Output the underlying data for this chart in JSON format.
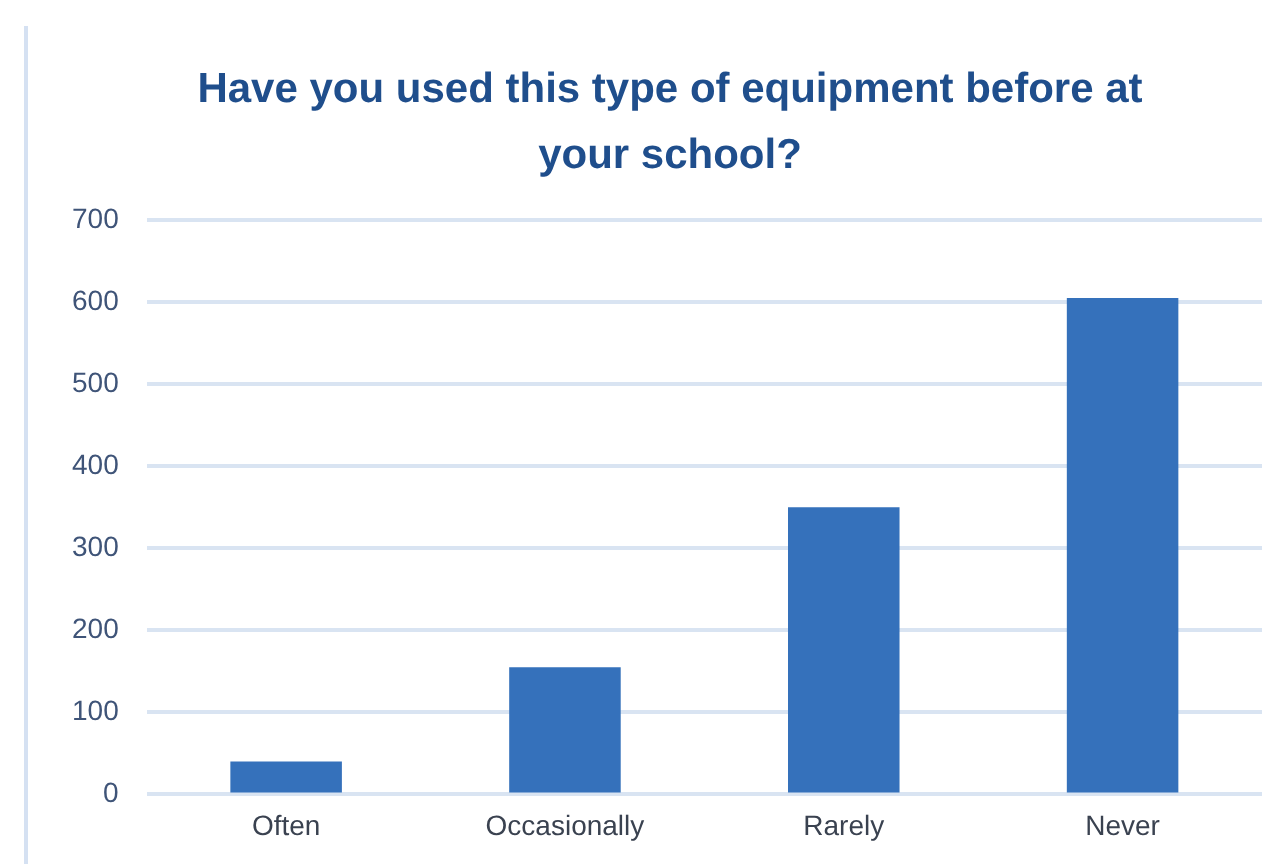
{
  "chart_data": {
    "type": "bar",
    "title": "Have you used this type of equipment before at your school?",
    "categories": [
      "Often",
      "Occasionally",
      "Rarely",
      "Never"
    ],
    "values": [
      40,
      155,
      350,
      605
    ],
    "color": "#3571bb",
    "ylim": [
      0,
      700
    ],
    "yticks": [
      0,
      100,
      200,
      300,
      400,
      500,
      600,
      700
    ],
    "grid": "y"
  }
}
